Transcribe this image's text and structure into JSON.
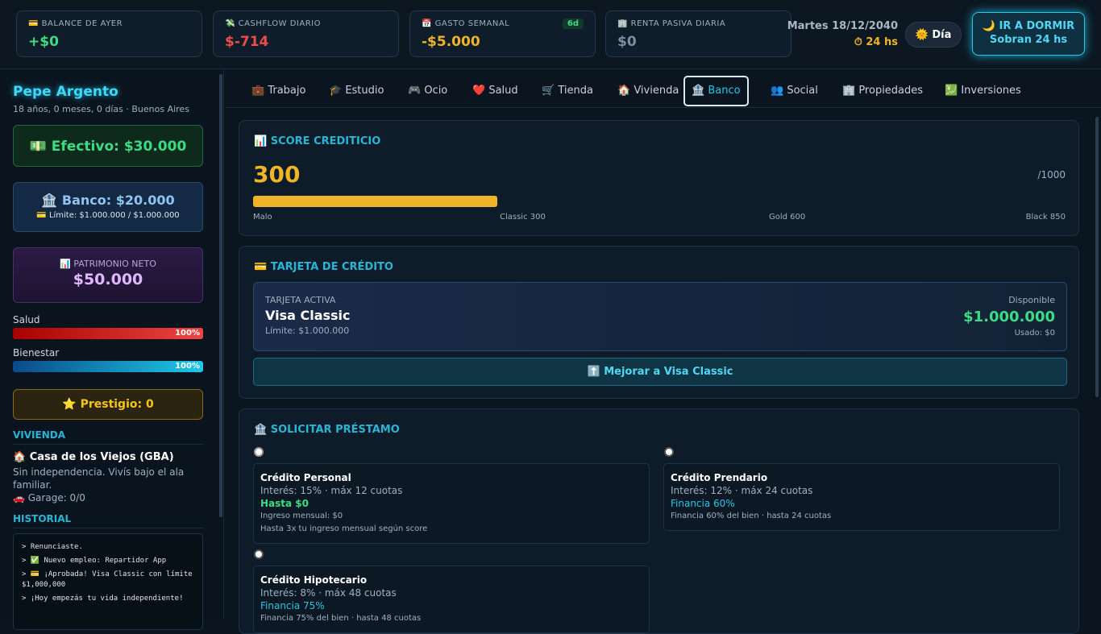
{
  "header": {
    "stats": [
      {
        "label": "💳 BALANCE DE AYER",
        "value": "+$0"
      },
      {
        "label": "💸 CASHFLOW DIARIO",
        "value": "$-714"
      },
      {
        "label": "📅 GASTO SEMANAL",
        "value": "-$5.000",
        "badge": "6d"
      },
      {
        "label": "🏢 RENTA PASIVA DIARIA",
        "value": "$0"
      }
    ],
    "date": "Martes 18/12/2040",
    "time": "⏱ 24 hs",
    "mode": "🌞 Día",
    "sleep": {
      "title": "🌙 IR A DORMIR",
      "sub": "Sobran 24 hs"
    }
  },
  "sidebar": {
    "name": "Pepe Argento",
    "subtitle": "18 años, 0 meses, 0 días · Buenos Aires",
    "cash": "💵 Efectivo: $30.000",
    "bank": "🏦 Banco: $20.000",
    "bank_limit": "💳 Límite: $1.000.000 / $1.000.000",
    "net_worth": {
      "label": "📊 PATRIMONIO NETO",
      "value": "$50.000"
    },
    "bars": [
      {
        "label": "Salud",
        "value": 100,
        "value_label": "100%"
      },
      {
        "label": "Bienestar",
        "value": 100,
        "value_label": "100%"
      }
    ],
    "prestige": "⭐ Prestigio: 0",
    "housing": {
      "title": "VIVIENDA",
      "name": "🏠 Casa de los Viejos (GBA)",
      "desc": "Sin independencia. Vivís bajo el ala familiar.",
      "garage": "🚗 Garage: 0/0"
    },
    "history": {
      "title": "HISTORIAL",
      "lines": [
        "> Renunciaste.",
        "> ✅ Nuevo empleo: Repartidor App",
        "> 💳 ¡Aprobada! Visa Classic con límite $1,000,000",
        "> ¡Hoy empezás tu vida independiente!"
      ]
    }
  },
  "tabs": {
    "items": [
      "💼 Trabajo",
      "🎓 Estudio",
      "🎮 Ocio",
      "❤️ Salud",
      "🛒 Tienda",
      "🏠 Vivienda",
      "🏦 Banco",
      "👥 Social",
      "🏢 Propiedades",
      "💹 Inversiones"
    ],
    "active": 6
  },
  "score": {
    "title": "📊 SCORE CREDITICIO",
    "value": 300,
    "max": 1000,
    "max_label": "/1000",
    "scale": [
      "Malo",
      "Classic 300",
      "Gold 600",
      "Black 850"
    ]
  },
  "card": {
    "title": "💳 TARJETA DE CRÉDITO",
    "active_label": "TARJETA ACTIVA",
    "name": "Visa Classic",
    "limit": "Límite: $1.000.000",
    "available_label": "Disponible",
    "available": "$1.000.000",
    "used": "Usado: $0",
    "upgrade": "⬆️ Mejorar a Visa Classic"
  },
  "loans": {
    "title": "🏦 SOLICITAR PRÉSTAMO",
    "options": [
      {
        "name": "Crédito Personal",
        "terms": "Interés: 15% · máx 12 cuotas",
        "amount": "Hasta $0",
        "notes": [
          "Ingreso mensual: $0",
          "Hasta 3x tu ingreso mensual según score"
        ]
      },
      {
        "name": "Crédito Prendario",
        "terms": "Interés: 12% · máx 24 cuotas",
        "amount": "Financia 60%",
        "notes": [
          "Financia 60% del bien · hasta 24 cuotas"
        ]
      },
      {
        "name": "Crédito Hipotecario",
        "terms": "Interés: 8% · máx 48 cuotas",
        "amount": "Financia 75%",
        "notes": [
          "Financia 75% del bien · hasta 48 cuotas"
        ]
      }
    ]
  }
}
